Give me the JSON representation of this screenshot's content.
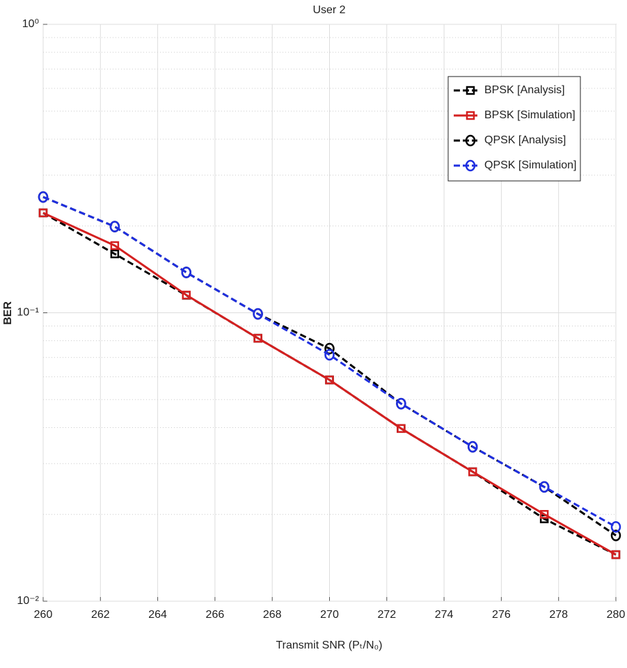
{
  "chart_data": {
    "type": "line",
    "title": "User 2",
    "xlabel": "Transmit SNR (Pₜ/N₀)",
    "ylabel": "BER",
    "x": [
      260,
      262.5,
      265,
      267.5,
      270,
      272.5,
      275,
      277.5,
      280
    ],
    "xlim": [
      260,
      280
    ],
    "xticks": [
      260,
      262,
      264,
      266,
      268,
      270,
      272,
      274,
      276,
      278,
      280
    ],
    "ylim": [
      0.01,
      1
    ],
    "yticks": [
      {
        "value": 0.01,
        "label": "10⁻²"
      },
      {
        "value": 0.1,
        "label": "10⁻¹"
      },
      {
        "value": 1,
        "label": "10⁰"
      }
    ],
    "yscale": "log",
    "grid": true,
    "minor_grid": true,
    "legend": "northeast",
    "series": [
      {
        "name": "BPSK [Analysis]",
        "color": "#000000",
        "dash": true,
        "marker": "square",
        "values": [
          0.222,
          0.16,
          0.115,
          0.0816,
          0.0585,
          0.0397,
          0.0281,
          0.0193,
          0.0145
        ]
      },
      {
        "name": "BPSK [Simulation]",
        "color": "#d42020",
        "dash": false,
        "marker": "square",
        "values": [
          0.222,
          0.171,
          0.1152,
          0.0816,
          0.0585,
          0.0397,
          0.0281,
          0.02,
          0.0145
        ]
      },
      {
        "name": "QPSK [Analysis]",
        "color": "#000000",
        "dash": true,
        "marker": "circle",
        "values": [
          0.252,
          0.199,
          0.138,
          0.0991,
          0.0751,
          0.0484,
          0.0343,
          0.0249,
          0.0169
        ]
      },
      {
        "name": "QPSK [Simulation]",
        "color": "#1f2fe0",
        "dash": true,
        "marker": "circle",
        "values": [
          0.252,
          0.199,
          0.138,
          0.0991,
          0.0715,
          0.0484,
          0.0343,
          0.0249,
          0.0181
        ]
      }
    ]
  }
}
